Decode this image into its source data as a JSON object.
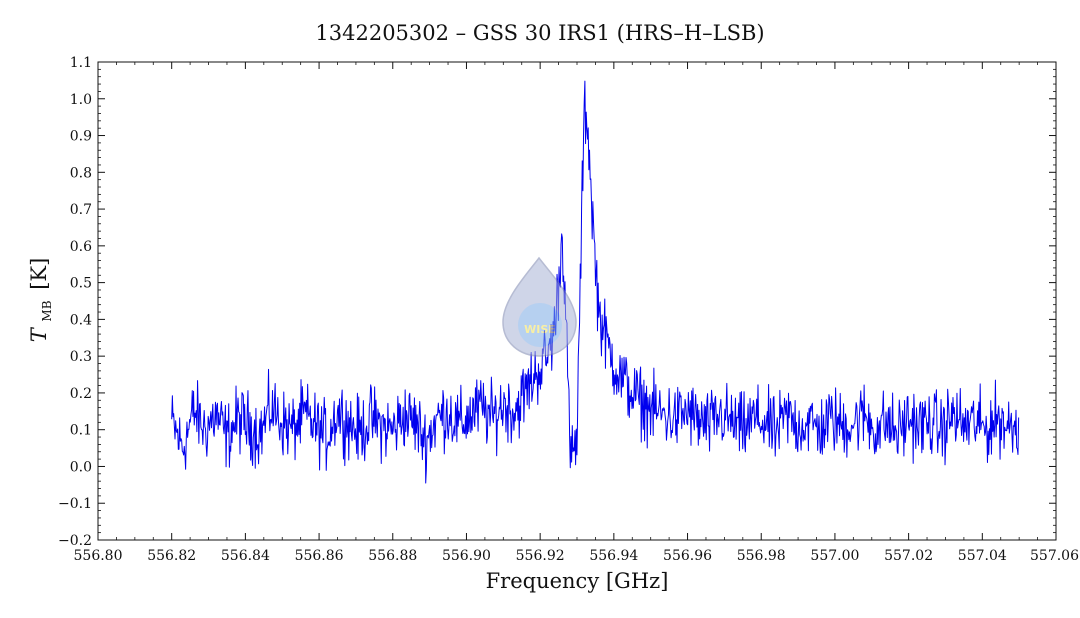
{
  "chart_data": {
    "type": "line",
    "title": "1342205302 – GSS 30 IRS1 (HRS–H–LSB)",
    "xlabel": "Frequency [GHz]",
    "ylabel_main": "T",
    "ylabel_sub": "MB",
    "ylabel_unit": "[K]",
    "xlim": [
      556.8,
      557.06
    ],
    "ylim": [
      -0.2,
      1.1
    ],
    "xticks": [
      556.8,
      556.82,
      556.84,
      556.86,
      556.88,
      556.9,
      556.92,
      556.94,
      556.96,
      556.98,
      557.0,
      557.02,
      557.04,
      557.06
    ],
    "xtick_labels": [
      "556.80",
      "556.82",
      "556.84",
      "556.86",
      "556.88",
      "556.90",
      "556.92",
      "556.94",
      "556.96",
      "556.98",
      "557.00",
      "557.02",
      "557.04",
      "557.06"
    ],
    "yticks": [
      -0.2,
      -0.1,
      0.0,
      0.1,
      0.2,
      0.3,
      0.4,
      0.5,
      0.6,
      0.7,
      0.8,
      0.9,
      1.0,
      1.1
    ],
    "ytick_labels": [
      "−0.2",
      "−0.1",
      "0.0",
      "0.1",
      "0.2",
      "0.3",
      "0.4",
      "0.5",
      "0.6",
      "0.7",
      "0.8",
      "0.9",
      "1.0",
      "1.1"
    ],
    "grid": false,
    "series": [
      {
        "color": "#0000ee",
        "x": [
          556.82,
          556.823,
          556.826,
          556.829,
          556.832,
          556.835,
          556.838,
          556.841,
          556.844,
          556.847,
          556.85,
          556.853,
          556.856,
          556.859,
          556.862,
          556.865,
          556.868,
          556.871,
          556.874,
          556.877,
          556.88,
          556.883,
          556.886,
          556.889,
          556.892,
          556.895,
          556.898,
          556.901,
          556.904,
          556.907,
          556.91,
          556.913,
          556.916,
          556.918,
          556.92,
          556.922,
          556.924,
          556.926,
          556.927,
          556.928,
          556.929,
          556.93,
          556.931,
          556.932,
          556.933,
          556.934,
          556.935,
          556.936,
          556.937,
          556.938,
          556.94,
          556.942,
          556.945,
          556.948,
          556.951,
          556.954,
          556.957,
          556.96,
          556.963,
          556.966,
          556.969,
          556.972,
          556.975,
          556.978,
          556.981,
          556.984,
          556.987,
          556.99,
          556.993,
          556.996,
          556.999,
          557.002,
          557.005,
          557.008,
          557.011,
          557.014,
          557.017,
          557.02,
          557.023,
          557.026,
          557.029,
          557.032,
          557.035,
          557.038,
          557.041,
          557.044,
          557.047,
          557.05
        ],
        "y": [
          0.12,
          0.05,
          0.15,
          0.1,
          0.14,
          0.08,
          0.13,
          0.11,
          0.09,
          0.16,
          0.12,
          0.1,
          0.14,
          0.11,
          0.08,
          0.15,
          0.12,
          0.09,
          0.13,
          0.11,
          0.1,
          0.14,
          0.12,
          0.07,
          0.13,
          0.15,
          0.11,
          0.14,
          0.16,
          0.13,
          0.17,
          0.15,
          0.2,
          0.24,
          0.27,
          0.3,
          0.38,
          0.62,
          0.45,
          0.05,
          0.02,
          0.08,
          0.55,
          0.98,
          0.92,
          0.72,
          0.55,
          0.42,
          0.38,
          0.34,
          0.28,
          0.24,
          0.2,
          0.17,
          0.15,
          0.14,
          0.13,
          0.15,
          0.12,
          0.11,
          0.14,
          0.12,
          0.1,
          0.13,
          0.12,
          0.09,
          0.14,
          0.11,
          0.12,
          0.1,
          0.13,
          0.11,
          0.12,
          0.14,
          0.1,
          0.12,
          0.09,
          0.13,
          0.11,
          0.12,
          0.1,
          0.14,
          0.11,
          0.12,
          0.1,
          0.13,
          0.11,
          0.12
        ]
      }
    ]
  },
  "watermark": {
    "text": "WISE",
    "icon": "wise-droplet-logo"
  }
}
